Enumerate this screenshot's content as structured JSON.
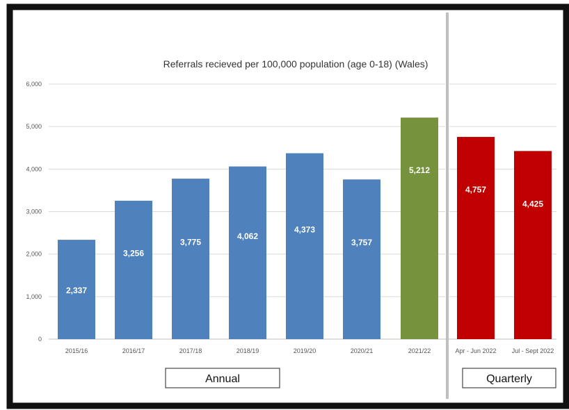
{
  "chart_data": {
    "type": "bar",
    "title": "Referrals recieved per 100,000 population (age 0-18) (Wales)",
    "xlabel": "",
    "ylabel": "",
    "ylim": [
      0,
      6000
    ],
    "yticks": [
      "0",
      "1,000",
      "2,000",
      "3,000",
      "4,000",
      "5,000",
      "6,000"
    ],
    "grid": true,
    "categories": [
      "2015/16",
      "2016/17",
      "2017/18",
      "2018/19",
      "2019/20",
      "2020/21",
      "2021/22",
      "Apr - Jun 2022",
      "Jul - Sept 2022"
    ],
    "values": [
      2337,
      3256,
      3775,
      4062,
      4373,
      3757,
      5212,
      4757,
      4425
    ],
    "data_labels": [
      "2,337",
      "3,256",
      "3,775",
      "4,062",
      "4,373",
      "3,757",
      "5,212",
      "4,757",
      "4,425"
    ],
    "bar_colors": [
      "#4f81bd",
      "#4f81bd",
      "#4f81bd",
      "#4f81bd",
      "#4f81bd",
      "#4f81bd",
      "#76923c",
      "#c00000",
      "#c00000"
    ],
    "groups": [
      {
        "label": "Annual",
        "from": 0,
        "to": 5
      },
      {
        "label": "Quarterly",
        "from": 7,
        "to": 8
      }
    ]
  }
}
